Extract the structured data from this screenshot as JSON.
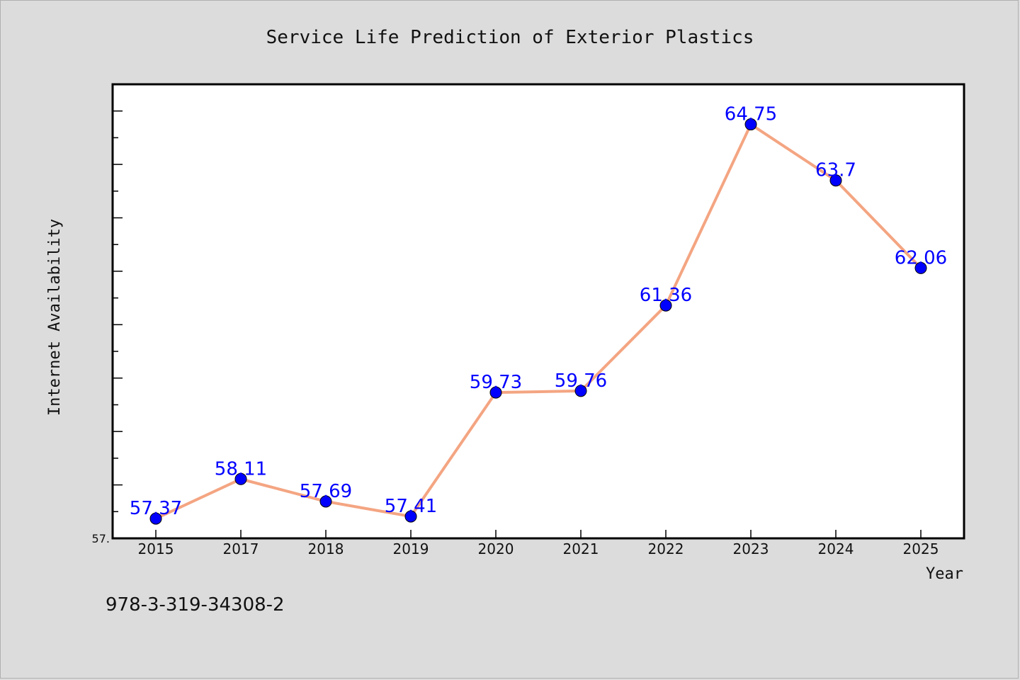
{
  "chart_data": {
    "type": "line",
    "title": "Service Life Prediction of Exterior Plastics",
    "xlabel": "Year",
    "ylabel": "Internet Availability",
    "categories": [
      "2015",
      "2017",
      "2018",
      "2019",
      "2020",
      "2021",
      "2022",
      "2023",
      "2024",
      "2025"
    ],
    "values": [
      57.37,
      58.11,
      57.69,
      57.41,
      59.73,
      59.76,
      61.36,
      64.75,
      63.7,
      62.06
    ],
    "data_labels": [
      "57.37",
      "58.11",
      "57.69",
      "57.41",
      "59.73",
      "59.76",
      "61.36",
      "64.75",
      "63.7",
      "62.06"
    ],
    "ylim": [
      57.0,
      65.5
    ],
    "y_tick_label": "57.",
    "grid": false,
    "line_color": "#f4a582",
    "marker_color": "#0000ff"
  },
  "footnote": "978-3-319-34308-2"
}
